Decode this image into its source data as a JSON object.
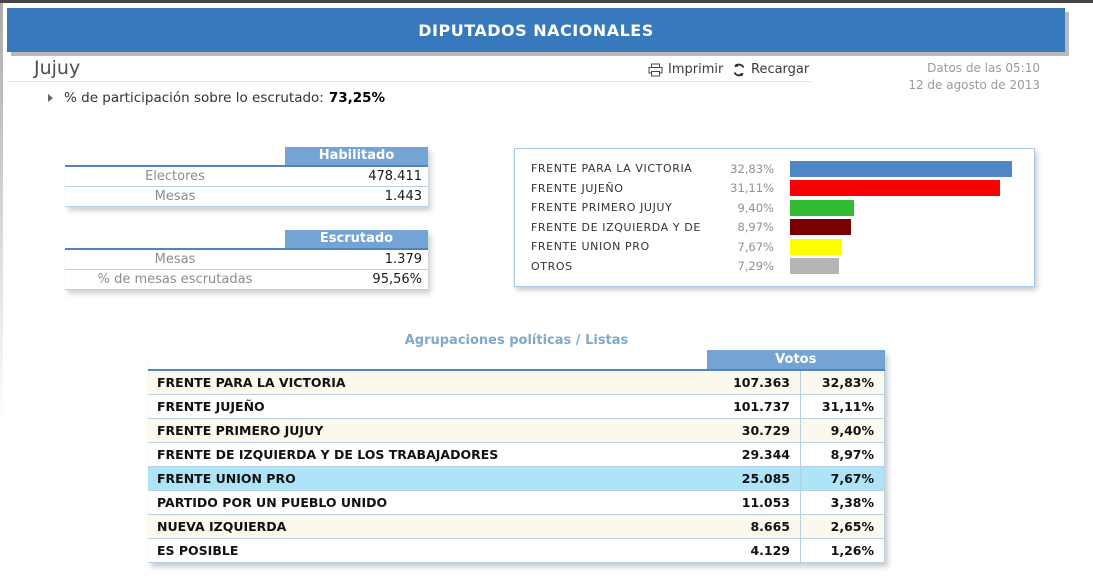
{
  "header": {
    "title": "DIPUTADOS NACIONALES"
  },
  "toolbar": {
    "region": "Jujuy",
    "print_label": "Imprimir",
    "reload_label": "Recargar",
    "data_time": "Datos de las 05:10",
    "data_date": "12 de agosto de 2013"
  },
  "participation": {
    "label": "% de participación sobre lo escrutado:",
    "value": "73,25%"
  },
  "summary_tables": [
    {
      "header": "Habilitado",
      "rows": [
        {
          "label": "Electores",
          "value": "478.411"
        },
        {
          "label": "Mesas",
          "value": "1.443"
        }
      ]
    },
    {
      "header": "Escrutado",
      "rows": [
        {
          "label": "Mesas",
          "value": "1.379"
        },
        {
          "label": "% de mesas escrutadas",
          "value": "95,56%"
        }
      ]
    }
  ],
  "chart_data": {
    "type": "bar",
    "orientation": "horizontal",
    "categories": [
      "FRENTE PARA LA VICTORIA",
      "FRENTE JUJEÑO",
      "FRENTE PRIMERO JUJUY",
      "FRENTE DE IZQUIERDA Y DE",
      "FRENTE UNION PRO",
      "OTROS"
    ],
    "values": [
      32.83,
      31.11,
      9.4,
      8.97,
      7.67,
      7.29
    ],
    "value_labels": [
      "32,83%",
      "31,11%",
      "9,40%",
      "8,97%",
      "7,67%",
      "7,29%"
    ],
    "bar_colors": [
      "#4e86c8",
      "#fb0000",
      "#33bb33",
      "#7a0000",
      "#ffff00",
      "#b5b5b5"
    ],
    "xlim": [
      0,
      35
    ],
    "legend": "none",
    "grid": false
  },
  "results_table": {
    "title": "Agrupaciones políticas / Listas",
    "votes_header": "Votos",
    "rows": [
      {
        "party": "FRENTE PARA LA VICTORIA",
        "votes": "107.363",
        "pct": "32,83%",
        "highlight": false
      },
      {
        "party": "FRENTE JUJEÑO",
        "votes": "101.737",
        "pct": "31,11%",
        "highlight": false
      },
      {
        "party": "FRENTE PRIMERO JUJUY",
        "votes": "30.729",
        "pct": "9,40%",
        "highlight": false
      },
      {
        "party": "FRENTE DE IZQUIERDA Y DE LOS TRABAJADORES",
        "votes": "29.344",
        "pct": "8,97%",
        "highlight": false
      },
      {
        "party": "FRENTE UNION PRO",
        "votes": "25.085",
        "pct": "7,67%",
        "highlight": true
      },
      {
        "party": "PARTIDO POR UN PUEBLO UNIDO",
        "votes": "11.053",
        "pct": "3,38%",
        "highlight": false
      },
      {
        "party": "NUEVA IZQUIERDA",
        "votes": "8.665",
        "pct": "2,65%",
        "highlight": false
      },
      {
        "party": "ES POSIBLE",
        "votes": "4.129",
        "pct": "1,26%",
        "highlight": false
      }
    ]
  },
  "colors": {
    "header_bar": "#3878bc",
    "subheader_blue": "#74a3d4",
    "table_border_blue": "#b7cfe3",
    "header_underline": "#4f86c0",
    "highlight_row": "#aee4f8",
    "stripe_row": "#fbf8ee",
    "title_blue": "#7fa9cb",
    "muted_gray": "#9b9b9b"
  }
}
